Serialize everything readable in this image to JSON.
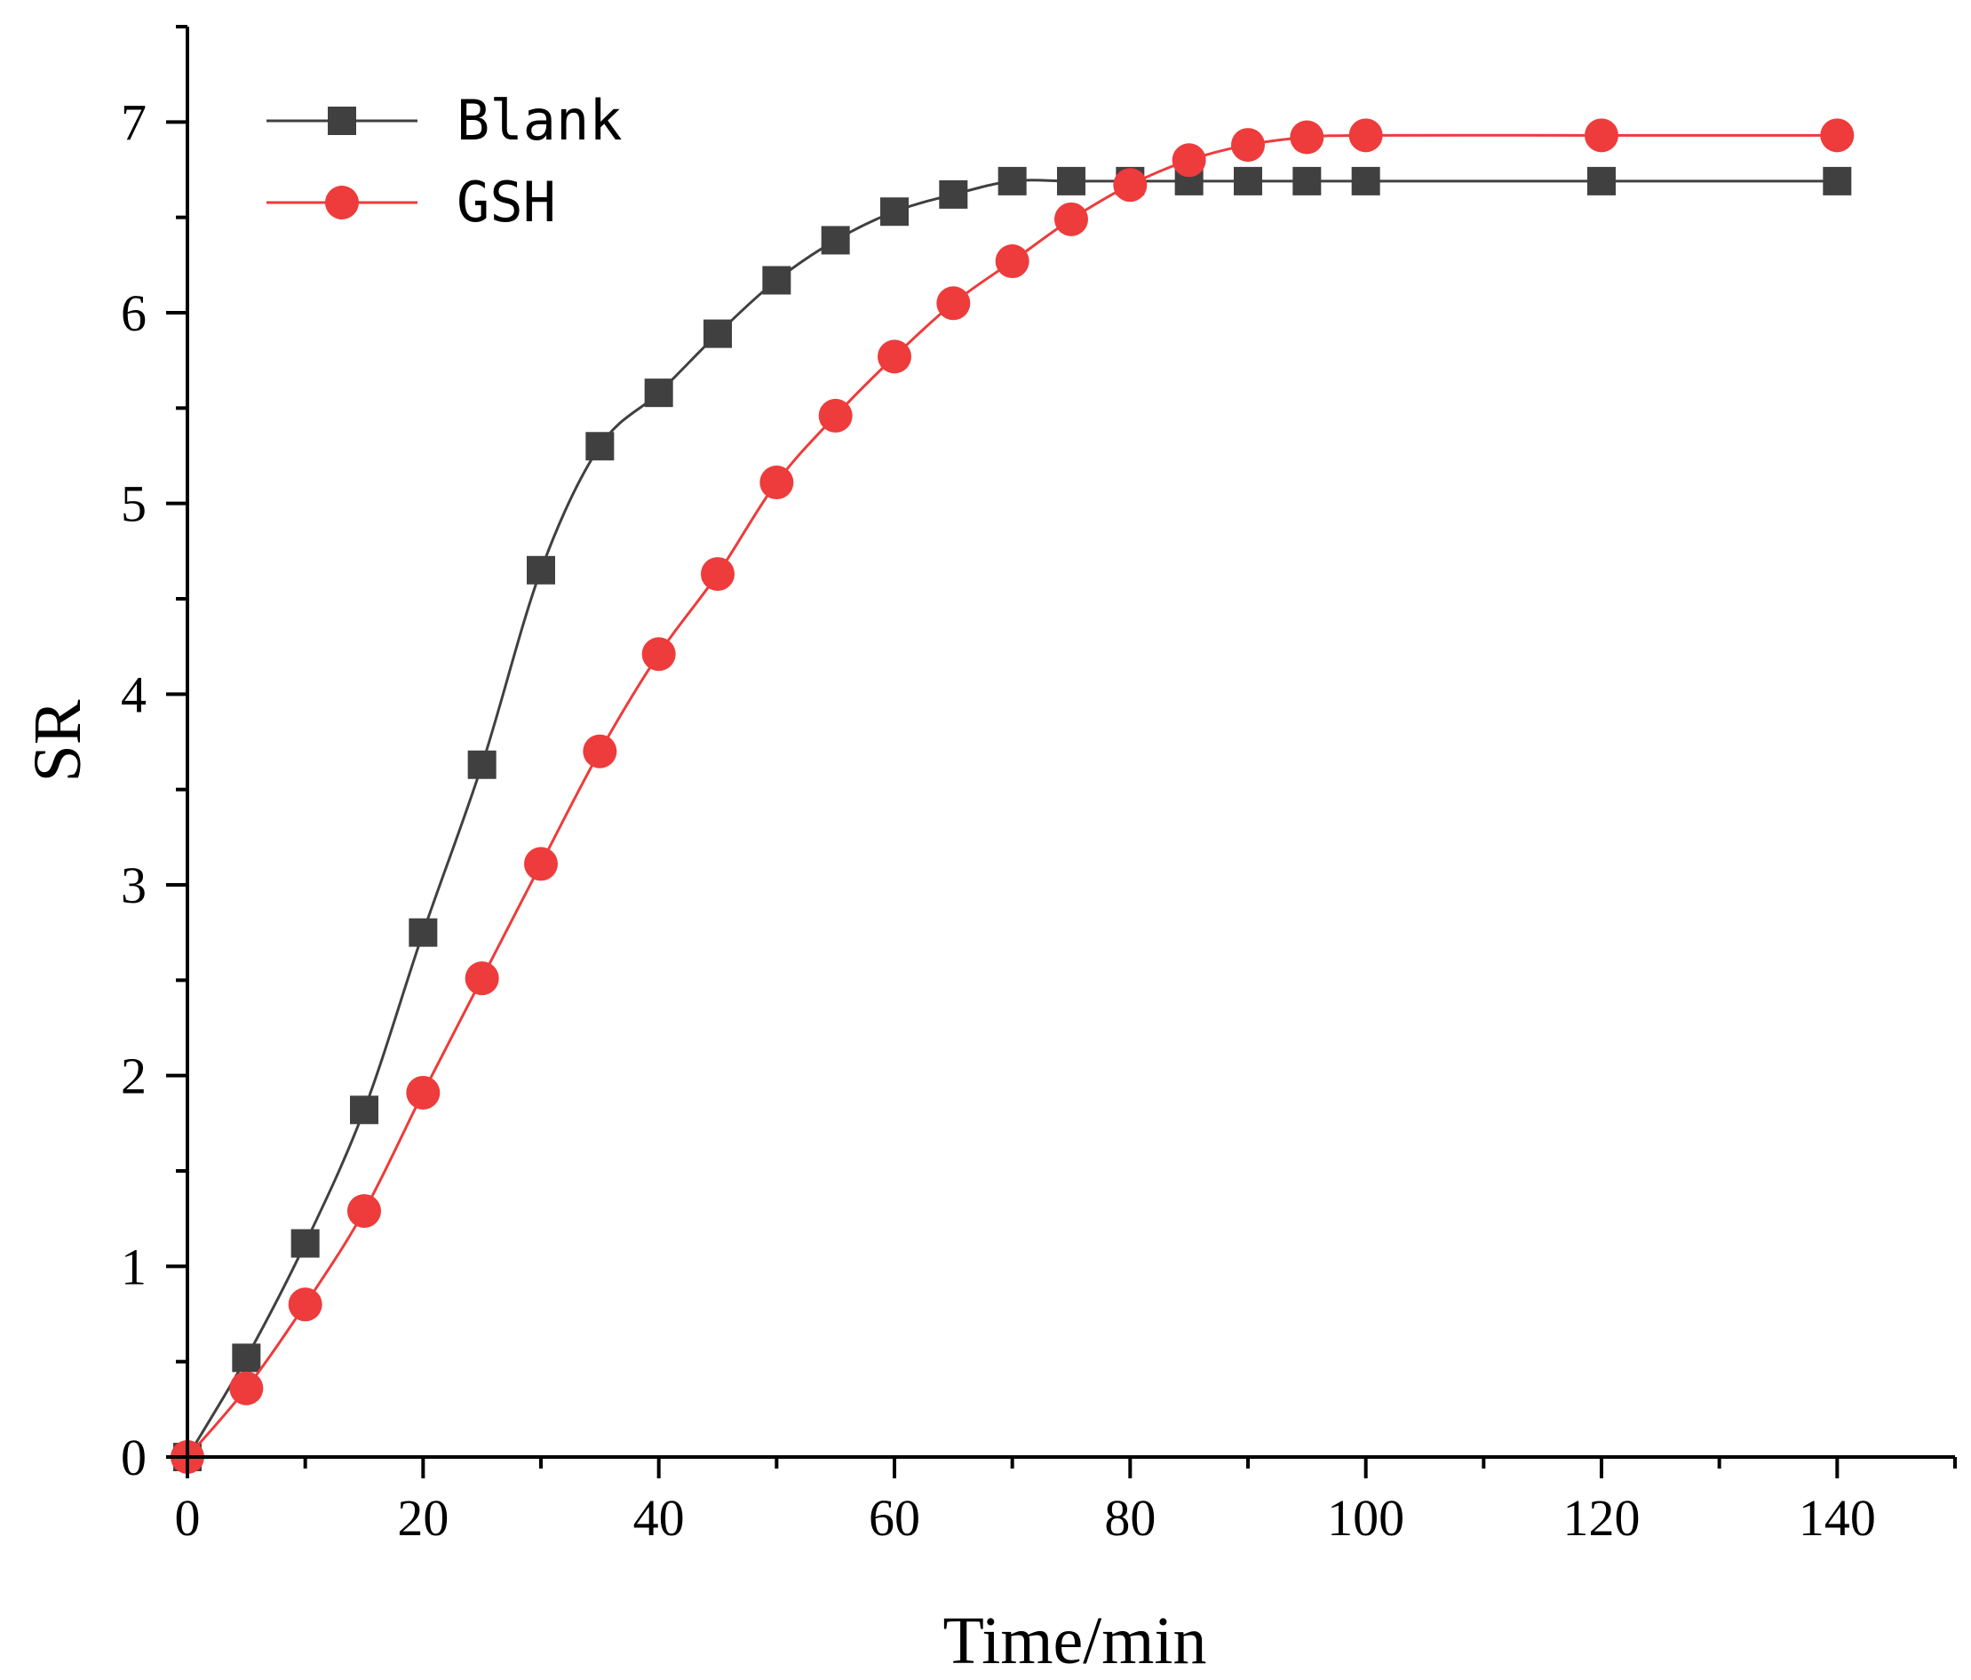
{
  "chart_data": {
    "type": "line",
    "title": "",
    "xlabel": "Time/min",
    "ylabel": "SR",
    "xlim": [
      0,
      150
    ],
    "ylim": [
      0,
      7.5
    ],
    "xticks": [
      0,
      20,
      40,
      60,
      80,
      100,
      120,
      140
    ],
    "xtick_labels": [
      "0",
      "20",
      "40",
      "60",
      "80",
      "100",
      "120",
      "140"
    ],
    "x_minor_step": 10,
    "yticks": [
      0,
      1,
      2,
      3,
      4,
      5,
      6,
      7
    ],
    "ytick_labels": [
      "0",
      "1",
      "2",
      "3",
      "4",
      "5",
      "6",
      "7"
    ],
    "y_minor_step": 0.5,
    "grid": false,
    "legend_position": "top-left",
    "x": [
      0,
      5,
      10,
      15,
      20,
      25,
      30,
      35,
      40,
      45,
      50,
      55,
      60,
      65,
      70,
      75,
      80,
      85,
      90,
      95,
      100,
      120,
      140
    ],
    "series": [
      {
        "name": "Blank",
        "color": "#404040",
        "marker": "square",
        "values": [
          0.0,
          0.52,
          1.12,
          1.82,
          2.75,
          3.63,
          4.65,
          5.3,
          5.58,
          5.89,
          6.17,
          6.38,
          6.53,
          6.62,
          6.69,
          6.69,
          6.69,
          6.69,
          6.69,
          6.69,
          6.69,
          6.69,
          6.69
        ]
      },
      {
        "name": "GSH",
        "color": "#ee3b3b",
        "marker": "circle",
        "values": [
          0.0,
          0.36,
          0.8,
          1.29,
          1.91,
          2.51,
          3.11,
          3.7,
          4.21,
          4.63,
          5.11,
          5.46,
          5.77,
          6.05,
          6.27,
          6.49,
          6.67,
          6.8,
          6.88,
          6.92,
          6.93,
          6.93,
          6.93
        ]
      }
    ]
  }
}
